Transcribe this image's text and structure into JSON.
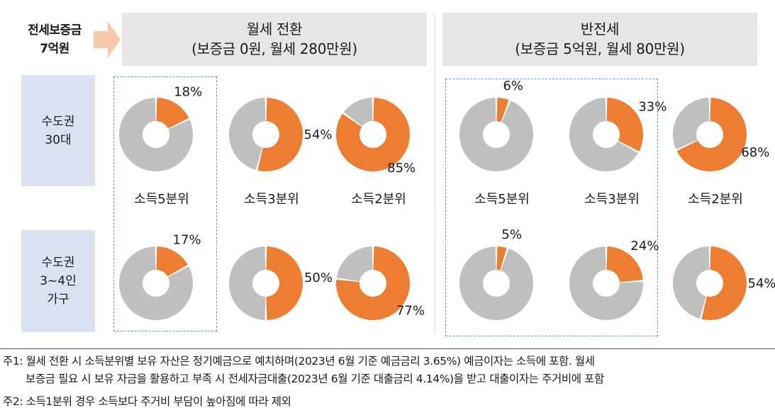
{
  "deposit": {
    "line1": "전세보증금",
    "line2": "7억원"
  },
  "headers": [
    {
      "line1": "월세 전환",
      "line2": "(보증금 0원, 월세 280만원)"
    },
    {
      "line1": "반전세",
      "line2": "(보증금 5억원, 월세 80만원)"
    }
  ],
  "rows": [
    {
      "line1": "수도권",
      "line2": "30대",
      "line3": ""
    },
    {
      "line1": "수도권",
      "line2": "3~4인",
      "line3": "가구"
    }
  ],
  "colors": {
    "share": "#ed7d31",
    "rest": "#bfbfbf",
    "header_bg": "#e6e6e6",
    "row_bg": "#d8e2f1",
    "highlight_border": "#5b9bd5"
  },
  "chart_data": {
    "type": "donut",
    "panels": [
      {
        "scenario": "월세 전환",
        "group": "수도권 30대",
        "categories": [
          "소득5분위",
          "소득3분위",
          "소득2분위"
        ],
        "values": [
          18,
          54,
          85
        ]
      },
      {
        "scenario": "월세 전환",
        "group": "수도권 3~4인 가구",
        "categories": [
          "소득5분위",
          "소득3분위",
          "소득2분위"
        ],
        "values": [
          17,
          50,
          77
        ]
      },
      {
        "scenario": "반전세",
        "group": "수도권 30대",
        "categories": [
          "소득5분위",
          "소득3분위",
          "소득2분위"
        ],
        "values": [
          6,
          33,
          68
        ]
      },
      {
        "scenario": "반전세",
        "group": "수도권 3~4인 가구",
        "categories": [
          "소득5분위",
          "소득3분위",
          "소득2분위"
        ],
        "values": [
          5,
          24,
          54
        ]
      }
    ],
    "value_labels": [
      [
        "18%",
        "54%",
        "85%"
      ],
      [
        "17%",
        "50%",
        "77%"
      ],
      [
        "6%",
        "33%",
        "68%"
      ],
      [
        "5%",
        "24%",
        "54%"
      ]
    ],
    "unit": "%"
  },
  "notes": {
    "n1_line1": "주1: 월세 전환 시 소득분위별 보유 자산은 정기예금으로 예치하며(2023년 6월 기준 예금금리 3.65%) 예금이자는 소득에 포함. 월세",
    "n1_line2": "보증금 필요 시 보유 자금을 활용하고 부족 시 전세자금대출(2023년 6월 기준 대출금리 4.14%)을 받고 대출이자는 주거비에 포함",
    "n2": "주2: 소득1분위 경우 소득보다 주거비 부담이 높아짐에 따라 제외"
  }
}
